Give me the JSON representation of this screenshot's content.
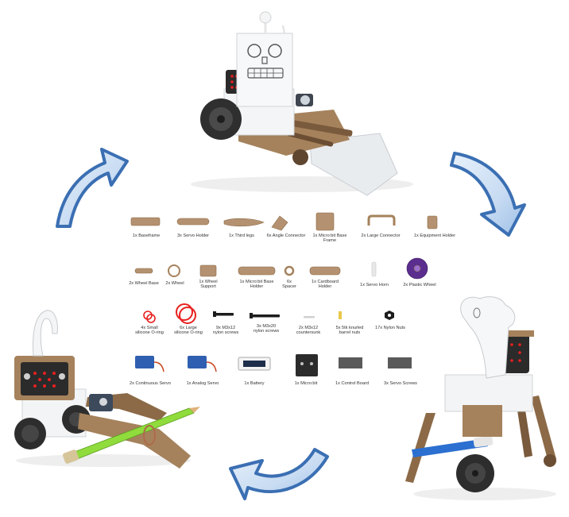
{
  "image": {
    "description_colors": {
      "arrow_fill": "#3b6fb3",
      "arrow_highlight": "#d5e4f6",
      "cardboard": "#a5825c",
      "wood_dark": "#5f4630",
      "microbit_led": "#e8201f",
      "pencil": "#8fdc3c",
      "pen": "#2b6fd0"
    }
  },
  "parts_row_1": [
    {
      "label": "1x Baseframe"
    },
    {
      "label": "3x Servo Holder"
    },
    {
      "label": "1x Third legs"
    },
    {
      "label": "6x Angle Connector"
    },
    {
      "label": "1x Micro:bit Base\nFrame"
    },
    {
      "label": "2x Large Connector"
    },
    {
      "label": "1x Equipment Holder"
    }
  ],
  "parts_row_2": [
    {
      "label": "2x Wheel Base"
    },
    {
      "label": "2x Wheel"
    },
    {
      "label": "1x Wheel\nSupport"
    },
    {
      "label": "1x Micro:bit Base\nHolder"
    },
    {
      "label": "6x\nSpacer"
    },
    {
      "label": "1x Cardboard\nHolder"
    },
    {
      "label": "1x Servo Horn"
    },
    {
      "label": "2x Plastic Wheel"
    }
  ],
  "parts_row_3": [
    {
      "label": "4x Small\nsilicone O-ring"
    },
    {
      "label": "6x Large\nsilicone O-ring"
    },
    {
      "label": "9x M3x12\nnylon screws"
    },
    {
      "label": "3x M3x20\nnylon screws"
    },
    {
      "label": "2x M3x12\ncountersunk"
    },
    {
      "label": "5x 5tk knurled\nbarrel nuts"
    },
    {
      "label": "17x Nylon Nuts"
    }
  ],
  "parts_row_4": [
    {
      "label": "2x Continuous Servo"
    },
    {
      "label": "1x Analog Servo"
    },
    {
      "label": "1x Battery"
    },
    {
      "label": "1x Micro:bit"
    },
    {
      "label": "1x Control Board"
    },
    {
      "label": "3x Servo Screws"
    }
  ]
}
